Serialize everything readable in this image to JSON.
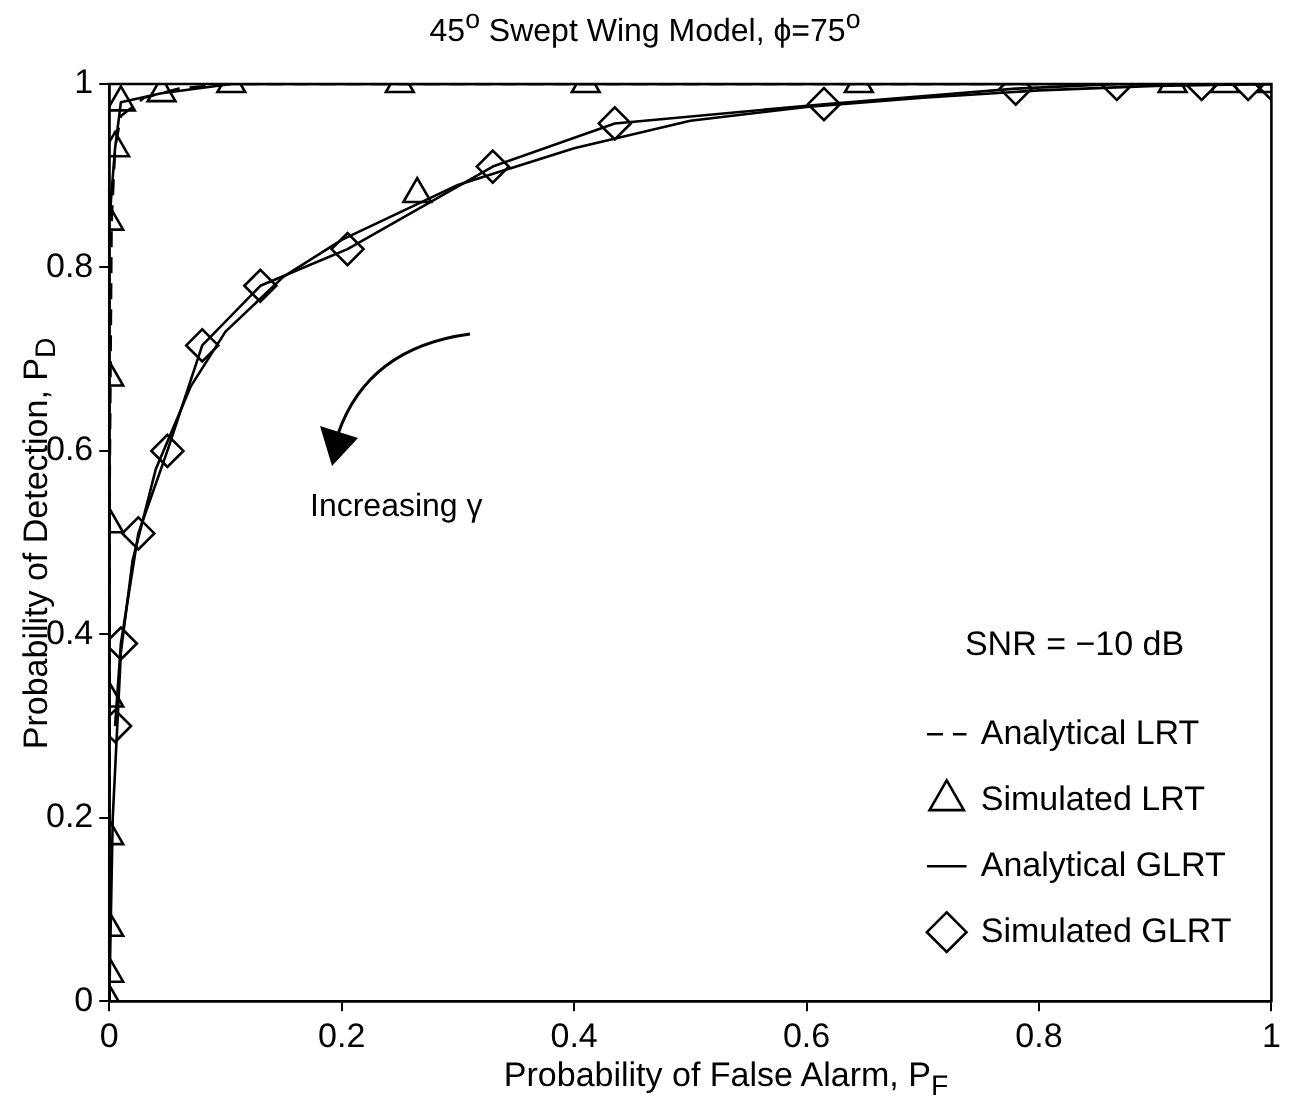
{
  "chart_data": {
    "type": "line",
    "title": "45$^{o}$ Swept Wing Model, ϕ=75$^{o}$",
    "xlabel": "Probability of False Alarm, P$_{F}$",
    "ylabel": "Probability of Detection, P$_{D}$",
    "legend_title": "SNR = −10 dB",
    "annotations": [
      "Increasing γ"
    ],
    "xlim": [
      0,
      1
    ],
    "ylim": [
      0,
      1
    ],
    "xticks": [
      0,
      0.2,
      0.4,
      0.6,
      0.8,
      1
    ],
    "yticks": [
      0,
      0.2,
      0.4,
      0.6,
      0.8,
      1
    ],
    "grid": false,
    "legend": "bottom right",
    "series": [
      {
        "name": "Analytical LRT",
        "color": "#000000",
        "line_style": "dashed",
        "marker": "none",
        "x": [
          0,
          0,
          0.002,
          0.005,
          0.01,
          0.03,
          0.06,
          0.1,
          1
        ],
        "values": [
          0,
          0.5,
          0.85,
          0.93,
          0.965,
          0.985,
          0.995,
          1,
          1
        ]
      },
      {
        "name": "Simulated LRT",
        "color": "#000000",
        "line_style": "solid",
        "marker": "triangle",
        "x": [
          0,
          0,
          0,
          0,
          0,
          0,
          0,
          0,
          0.005,
          0.01,
          0.045,
          0.105,
          0.25,
          0.41,
          0.645,
          0.915,
          0.96,
          1
        ],
        "values": [
          0,
          0.03,
          0.08,
          0.18,
          0.33,
          0.52,
          0.68,
          0.85,
          0.93,
          0.98,
          0.99,
          1,
          1,
          1,
          1,
          1,
          1,
          1
        ]
      },
      {
        "name": "Analytical GLRT",
        "color": "#000000",
        "line_style": "solid",
        "marker": "none",
        "x": [
          0,
          0.003,
          0.01,
          0.02,
          0.04,
          0.07,
          0.1,
          0.15,
          0.2,
          0.3,
          0.4,
          0.5,
          0.6,
          0.7,
          0.8,
          0.9,
          1
        ],
        "values": [
          0,
          0.2,
          0.38,
          0.48,
          0.58,
          0.67,
          0.73,
          0.79,
          0.83,
          0.89,
          0.93,
          0.96,
          0.975,
          0.985,
          0.993,
          0.998,
          1
        ]
      },
      {
        "name": "Simulated GLRT",
        "color": "#000000",
        "line_style": "solid",
        "marker": "diamond",
        "x": [
          0.005,
          0.01,
          0.025,
          0.05,
          0.08,
          0.13,
          0.205,
          0.33,
          0.435,
          0.615,
          0.78,
          0.867,
          0.94,
          0.98,
          1
        ],
        "values": [
          0.3,
          0.39,
          0.51,
          0.6,
          0.715,
          0.78,
          0.82,
          0.91,
          0.957,
          0.978,
          0.995,
          1,
          1,
          1,
          1
        ]
      },
      {
        "type": "scatter",
        "color": "#000000",
        "marker": "triangle",
        "x": [
          0.265
        ],
        "values": [
          0.88
        ]
      }
    ]
  }
}
